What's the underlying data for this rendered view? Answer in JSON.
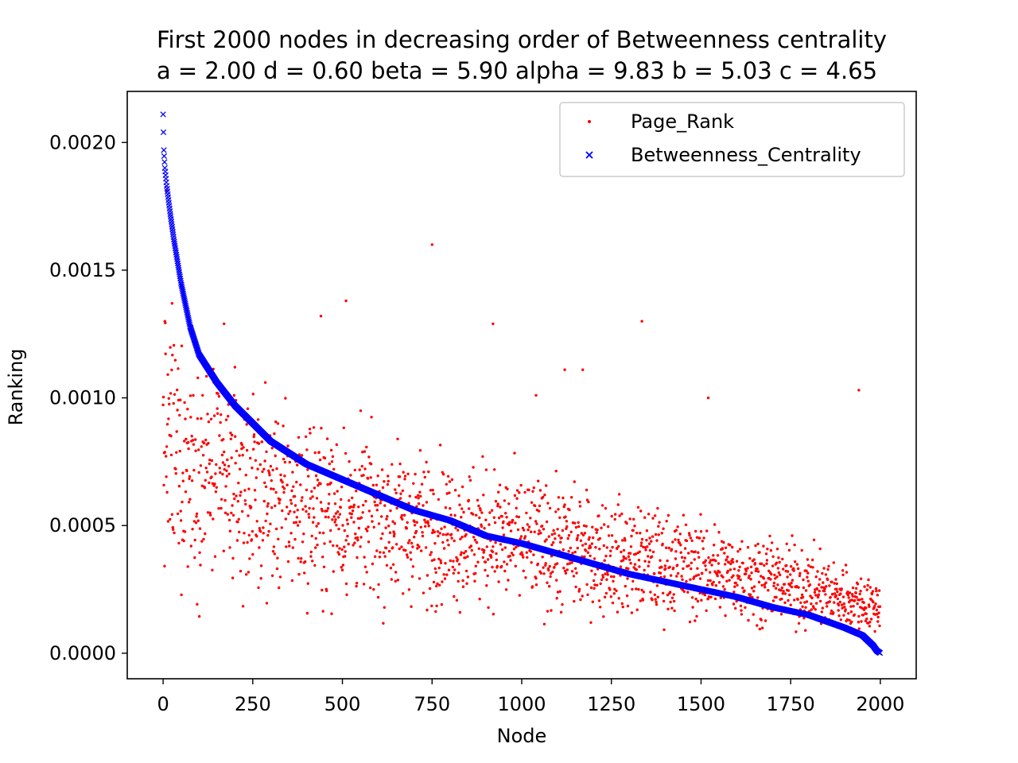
{
  "chart_data": {
    "type": "scatter",
    "title": "First 2000 nodes in decreasing order of Betweenness centrality",
    "subtitle": "a = 2.00 d = 0.60 beta = 5.90 alpha = 9.83 b = 5.03 c = 4.65",
    "xlabel": "Node",
    "ylabel": "Ranking",
    "xlim": [
      -100,
      2100
    ],
    "ylim": [
      -0.0001,
      0.0022
    ],
    "xticks": [
      0,
      250,
      500,
      750,
      1000,
      1250,
      1500,
      1750,
      2000
    ],
    "xtick_labels": [
      "0",
      "250",
      "500",
      "750",
      "1000",
      "1250",
      "1500",
      "1750",
      "2000"
    ],
    "yticks": [
      0.0,
      0.0005,
      0.001,
      0.0015,
      0.002
    ],
    "ytick_labels": [
      "0.0000",
      "0.0005",
      "0.0010",
      "0.0015",
      "0.0020"
    ],
    "grid": false,
    "legend_position": "top-right",
    "series": [
      {
        "name": "Page_Rank",
        "marker": "dot",
        "color": "#ff0000",
        "n_points": 2000,
        "trend_points": [
          [
            0,
            0.00082
          ],
          [
            100,
            0.00072
          ],
          [
            250,
            0.00062
          ],
          [
            500,
            0.00055
          ],
          [
            750,
            0.00049
          ],
          [
            1000,
            0.00044
          ],
          [
            1250,
            0.00038
          ],
          [
            1500,
            0.00033
          ],
          [
            1750,
            0.00027
          ],
          [
            2000,
            0.00018
          ]
        ],
        "outliers": [
          [
            10,
            0.00181
          ],
          [
            25,
            0.00137
          ],
          [
            5,
            0.0013
          ],
          [
            170,
            0.00129
          ],
          [
            440,
            0.00132
          ],
          [
            510,
            0.00138
          ],
          [
            750,
            0.0016
          ],
          [
            920,
            0.00129
          ],
          [
            1335,
            0.0013
          ],
          [
            1040,
            0.00101
          ],
          [
            1520,
            0.001
          ],
          [
            1940,
            0.00103
          ],
          [
            1120,
            0.00111
          ],
          [
            1170,
            0.00111
          ]
        ]
      },
      {
        "name": "Betweenness_Centrality",
        "marker": "x",
        "color": "#0000ff",
        "n_points": 2000,
        "curve": [
          [
            0,
            0.00211
          ],
          [
            2,
            0.00197
          ],
          [
            5,
            0.0019
          ],
          [
            10,
            0.00183
          ],
          [
            20,
            0.00172
          ],
          [
            30,
            0.00162
          ],
          [
            50,
            0.00145
          ],
          [
            75,
            0.00128
          ],
          [
            100,
            0.00117
          ],
          [
            150,
            0.00106
          ],
          [
            200,
            0.00097
          ],
          [
            250,
            0.0009
          ],
          [
            300,
            0.00083
          ],
          [
            400,
            0.00074
          ],
          [
            500,
            0.00068
          ],
          [
            600,
            0.00062
          ],
          [
            700,
            0.00056
          ],
          [
            800,
            0.00052
          ],
          [
            900,
            0.00046
          ],
          [
            1000,
            0.00043
          ],
          [
            1100,
            0.00039
          ],
          [
            1200,
            0.00035
          ],
          [
            1300,
            0.00031
          ],
          [
            1400,
            0.00028
          ],
          [
            1500,
            0.00025
          ],
          [
            1600,
            0.00022
          ],
          [
            1700,
            0.00018
          ],
          [
            1800,
            0.00015
          ],
          [
            1900,
            0.0001
          ],
          [
            1950,
            7e-05
          ],
          [
            1980,
            3e-05
          ],
          [
            1990,
            1e-05
          ],
          [
            2000,
            0.0
          ]
        ]
      }
    ]
  }
}
